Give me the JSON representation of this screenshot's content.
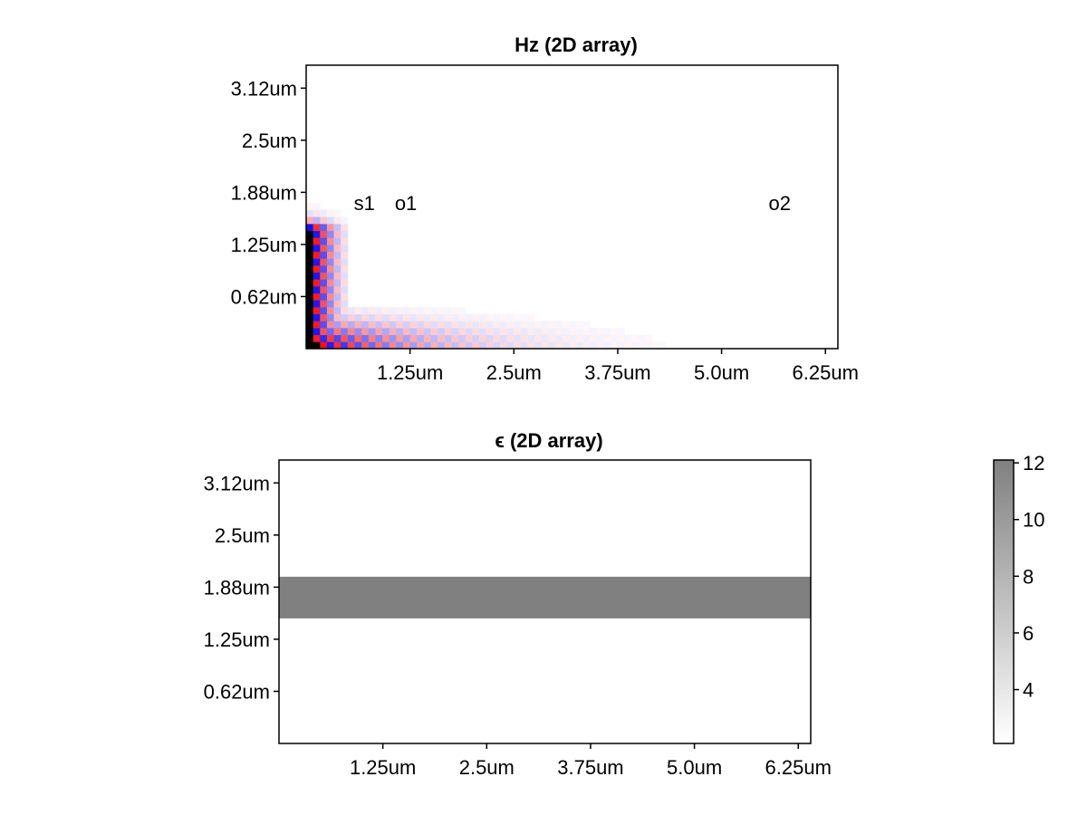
{
  "chart_data": [
    {
      "type": "heatmap",
      "title": "Hz (2D array)",
      "xlabel": "",
      "ylabel": "",
      "x_ticks": [
        "1.25um",
        "2.5um",
        "3.75um",
        "5.0um",
        "6.25um"
      ],
      "x_tick_values": [
        1.25,
        2.5,
        3.75,
        5.0,
        6.25
      ],
      "y_ticks": [
        "3.12um",
        "2.5um",
        "1.88um",
        "1.25um",
        "0.62um"
      ],
      "y_tick_values": [
        3.125,
        2.5,
        1.875,
        1.25,
        0.625
      ],
      "xlim": [
        0,
        6.4
      ],
      "ylim": [
        0,
        3.4
      ],
      "grid": false,
      "colormap": [
        "#0000ff",
        "#ffffff",
        "#ff0000"
      ],
      "field_shape": "L-shaped oscillating field confined to a vertical band at x≈0–0.45um and a horizontal band at y≈0–0.45um, strongest near the origin corner and decaying along x toward ≈4.5um",
      "annotations": [
        {
          "text": "s1",
          "x": 0.7,
          "y": 1.75
        },
        {
          "text": "o1",
          "x": 1.2,
          "y": 1.75
        },
        {
          "text": "o2",
          "x": 5.7,
          "y": 1.75
        }
      ]
    },
    {
      "type": "heatmap",
      "title": "ϵ (2D array)",
      "xlabel": "",
      "ylabel": "",
      "x_ticks": [
        "1.25um",
        "2.5um",
        "3.75um",
        "5.0um",
        "6.25um"
      ],
      "x_tick_values": [
        1.25,
        2.5,
        3.75,
        5.0,
        6.25
      ],
      "y_ticks": [
        "3.12um",
        "2.5um",
        "1.88um",
        "1.25um",
        "0.62um"
      ],
      "y_tick_values": [
        3.125,
        2.5,
        1.875,
        1.25,
        0.625
      ],
      "xlim": [
        0,
        6.4
      ],
      "ylim": [
        0,
        3.4
      ],
      "grid": false,
      "colormap": [
        "#ffffff",
        "#808080"
      ],
      "background_value": 2.1,
      "regions": [
        {
          "x": [
            0,
            6.4
          ],
          "y": [
            1.5,
            2.0
          ],
          "value": 12.1
        }
      ],
      "colorbar": {
        "ticks": [
          "12",
          "10",
          "8",
          "6",
          "4"
        ],
        "tick_values": [
          12,
          10,
          8,
          6,
          4
        ],
        "range": [
          2.1,
          12.1
        ],
        "placement": "right"
      }
    }
  ]
}
